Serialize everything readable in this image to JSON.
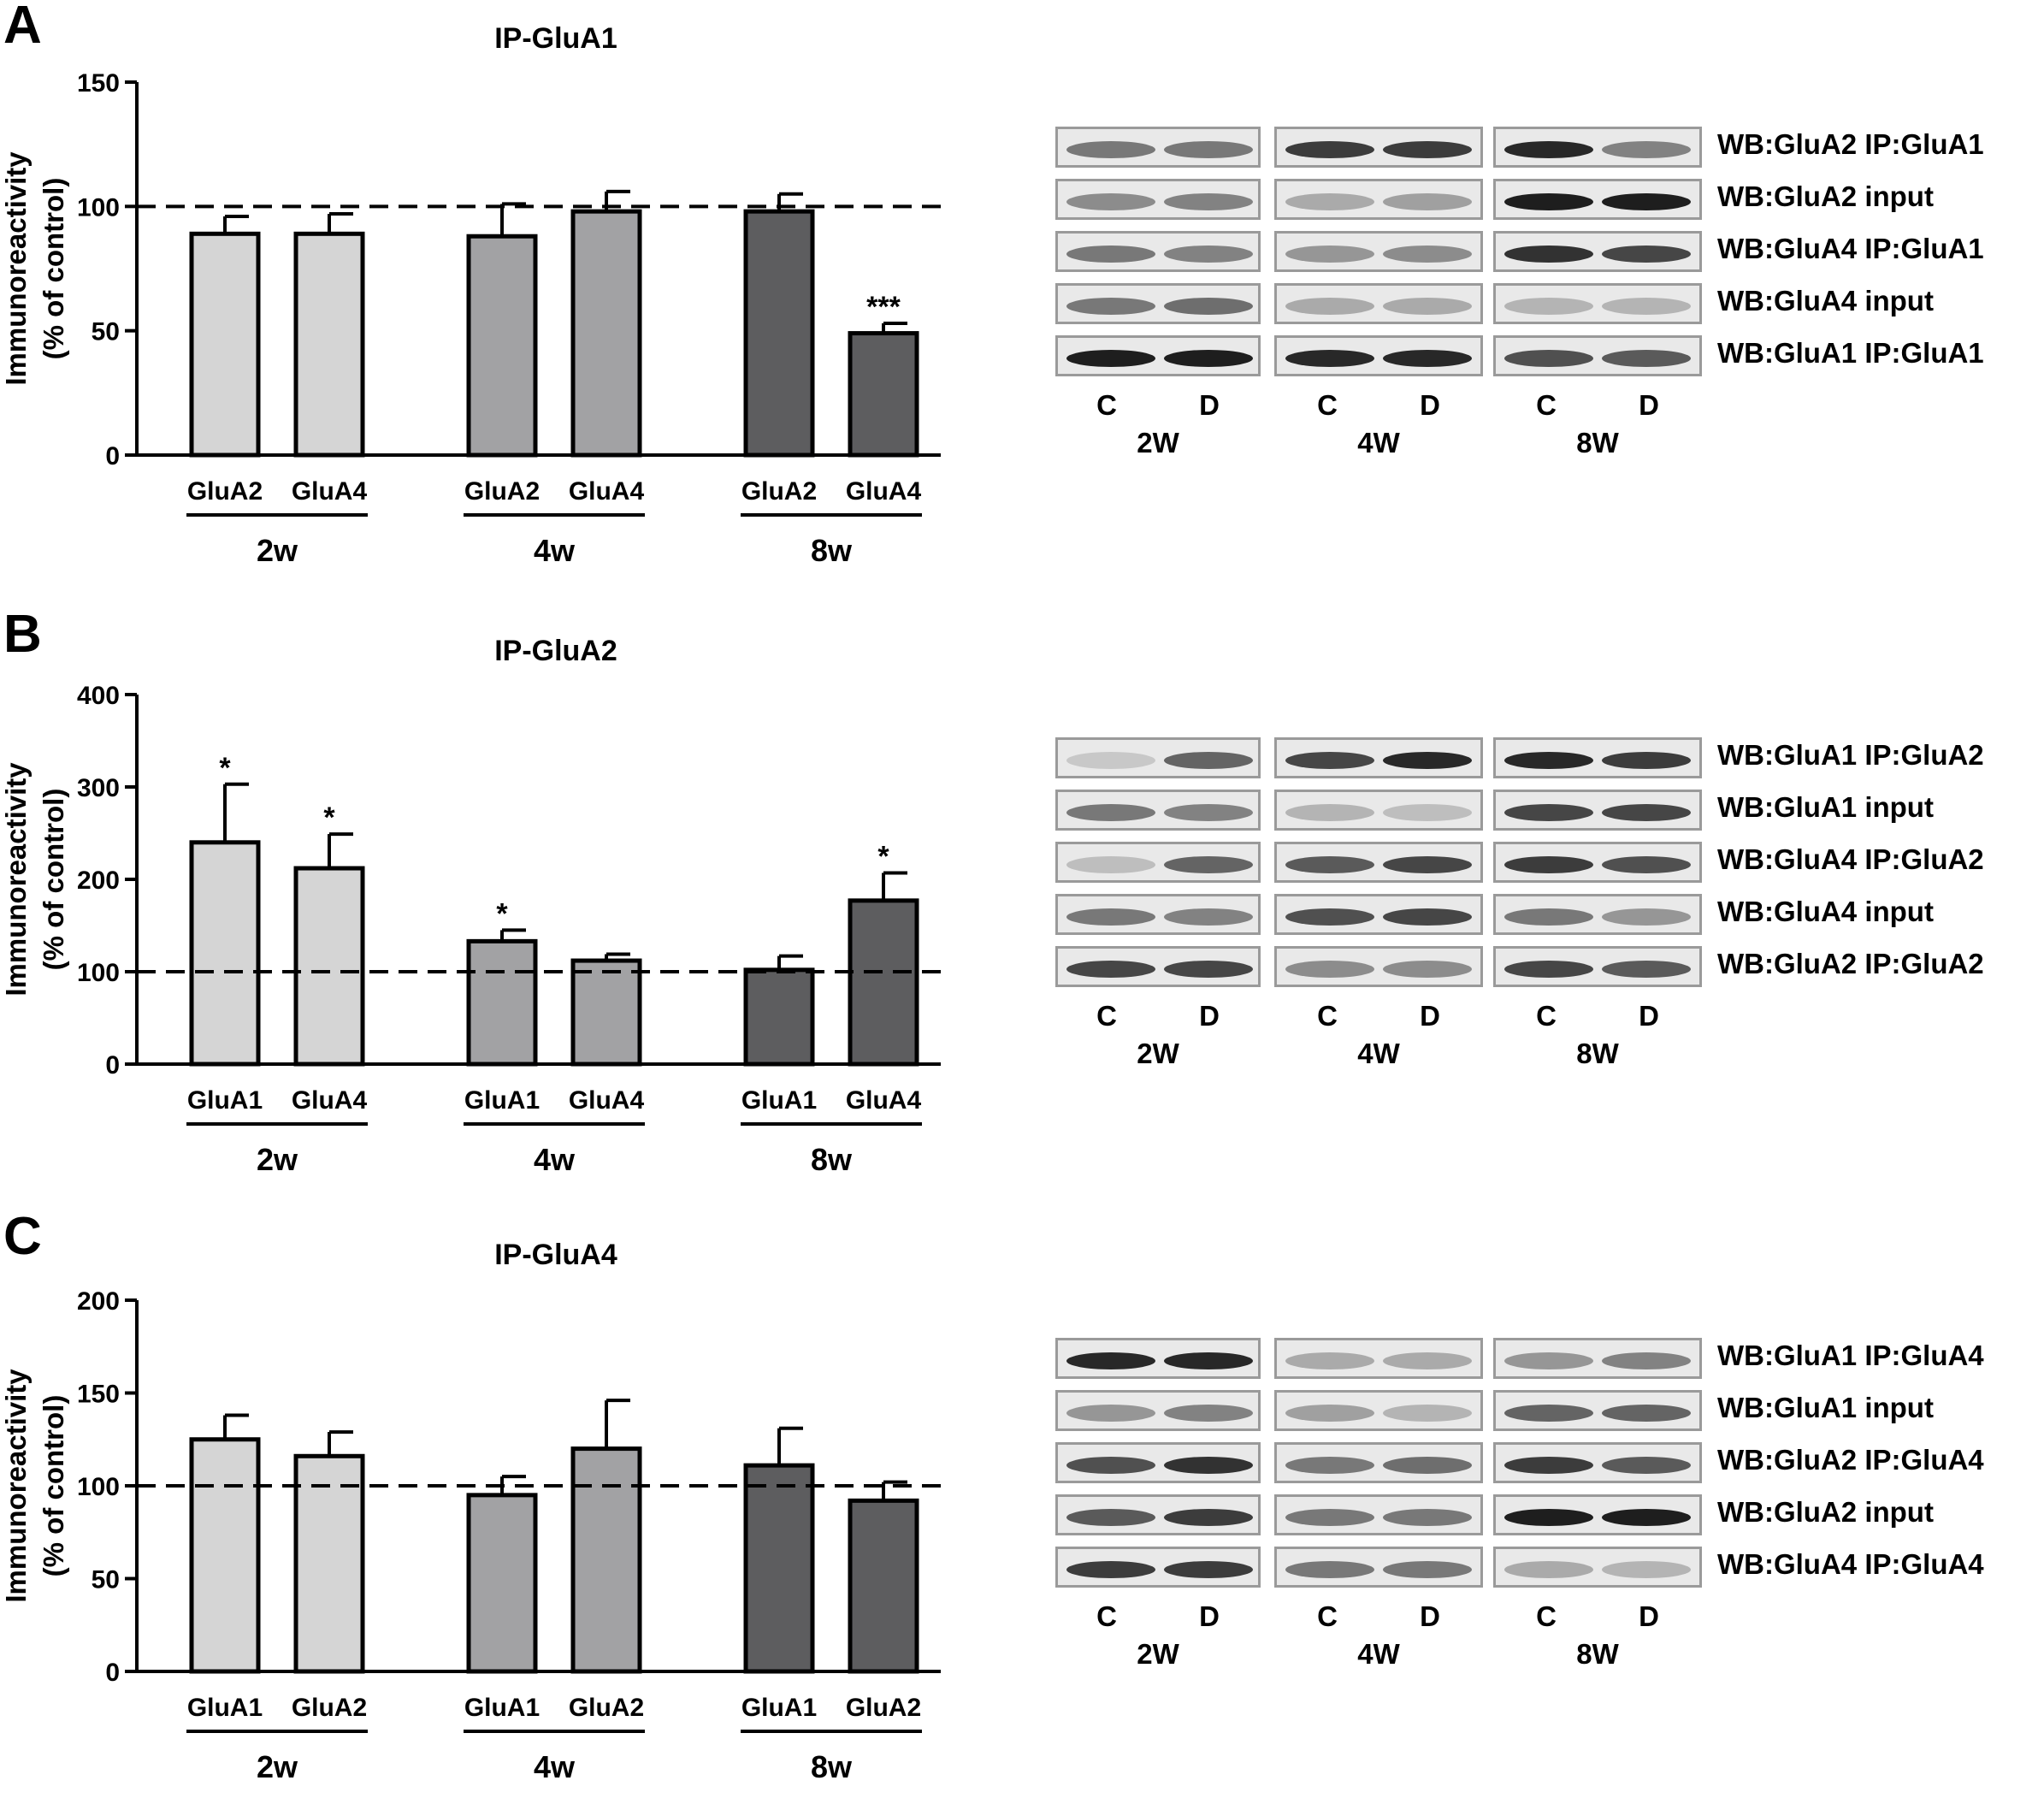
{
  "chart_data": [
    {
      "panel": "A",
      "type": "bar",
      "title": "IP-GluA1",
      "ylabel": "Immunoreactivity\n(% of control)",
      "ylim": [
        0,
        150
      ],
      "yticks": [
        0,
        50,
        100,
        150
      ],
      "reference_line": 100,
      "categories": [
        "GluA2",
        "GluA4",
        "GluA2",
        "GluA4",
        "GluA2",
        "GluA4"
      ],
      "groups": [
        "2w",
        "4w",
        "8w"
      ],
      "values": [
        89,
        89,
        88,
        98,
        98,
        49
      ],
      "errors": [
        7,
        8,
        13,
        8,
        7,
        4
      ],
      "significance": [
        "",
        "",
        "",
        "",
        "",
        "***"
      ],
      "colors": [
        "#d5d5d5",
        "#d5d5d5",
        "#a2a2a4",
        "#a2a2a4",
        "#5d5d5f",
        "#5d5d5f"
      ]
    },
    {
      "panel": "B",
      "type": "bar",
      "title": "IP-GluA2",
      "ylabel": "Immunoreactivity\n(% of control)",
      "ylim": [
        0,
        400
      ],
      "yticks": [
        0,
        100,
        200,
        300,
        400
      ],
      "reference_line": 100,
      "categories": [
        "GluA1",
        "GluA4",
        "GluA1",
        "GluA4",
        "GluA1",
        "GluA4"
      ],
      "groups": [
        "2w",
        "4w",
        "8w"
      ],
      "values": [
        240,
        212,
        133,
        112,
        102,
        177
      ],
      "errors": [
        63,
        37,
        12,
        7,
        15,
        30
      ],
      "significance": [
        "*",
        "*",
        "*",
        "",
        "",
        "*"
      ],
      "colors": [
        "#d5d5d5",
        "#d5d5d5",
        "#a2a2a4",
        "#a2a2a4",
        "#5d5d5f",
        "#5d5d5f"
      ]
    },
    {
      "panel": "C",
      "type": "bar",
      "title": "IP-GluA4",
      "ylabel": "Immunoreactivity\n(% of control)",
      "ylim": [
        0,
        200
      ],
      "yticks": [
        0,
        50,
        100,
        150,
        200
      ],
      "reference_line": 100,
      "categories": [
        "GluA1",
        "GluA2",
        "GluA1",
        "GluA2",
        "GluA1",
        "GluA2"
      ],
      "groups": [
        "2w",
        "4w",
        "8w"
      ],
      "values": [
        125,
        116,
        95,
        120,
        111,
        92
      ],
      "errors": [
        13,
        13,
        10,
        26,
        20,
        10
      ],
      "significance": [
        "",
        "",
        "",
        "",
        "",
        ""
      ],
      "colors": [
        "#d5d5d5",
        "#d5d5d5",
        "#a2a2a4",
        "#a2a2a4",
        "#5d5d5f",
        "#5d5d5f"
      ]
    }
  ],
  "blots": [
    {
      "panel": "A",
      "rows": [
        {
          "label": "WB:GluA2  IP:GluA1",
          "bands": [
            [
              0.55,
              0.55
            ],
            [
              0.85,
              0.85
            ],
            [
              0.95,
              0.5
            ]
          ]
        },
        {
          "label": "WB:GluA2  input",
          "bands": [
            [
              0.45,
              0.5
            ],
            [
              0.3,
              0.35
            ],
            [
              1.0,
              1.0
            ]
          ]
        },
        {
          "label": "WB:GluA4  IP:GluA1",
          "bands": [
            [
              0.55,
              0.5
            ],
            [
              0.4,
              0.45
            ],
            [
              0.9,
              0.8
            ]
          ]
        },
        {
          "label": "WB:GluA4  input",
          "bands": [
            [
              0.55,
              0.6
            ],
            [
              0.3,
              0.3
            ],
            [
              0.25,
              0.25
            ]
          ]
        },
        {
          "label": "WB:GluA1  IP:GluA1",
          "bands": [
            [
              1.0,
              1.0
            ],
            [
              0.95,
              0.95
            ],
            [
              0.75,
              0.7
            ]
          ]
        }
      ],
      "lanes": [
        "C",
        "D"
      ],
      "weeks": [
        "2W",
        "4W",
        "8W"
      ]
    },
    {
      "panel": "B",
      "rows": [
        {
          "label": "WB:GluA1  IP:GluA2",
          "bands": [
            [
              0.15,
              0.65
            ],
            [
              0.8,
              0.95
            ],
            [
              0.95,
              0.85
            ]
          ]
        },
        {
          "label": "WB:GluA1  input",
          "bands": [
            [
              0.55,
              0.5
            ],
            [
              0.25,
              0.2
            ],
            [
              0.8,
              0.8
            ]
          ]
        },
        {
          "label": "WB:GluA4  IP:GluA2",
          "bands": [
            [
              0.2,
              0.65
            ],
            [
              0.7,
              0.8
            ],
            [
              0.85,
              0.75
            ]
          ]
        },
        {
          "label": "WB:GluA4  input",
          "bands": [
            [
              0.55,
              0.5
            ],
            [
              0.75,
              0.8
            ],
            [
              0.55,
              0.4
            ]
          ]
        },
        {
          "label": "WB:GluA2  IP:GluA2",
          "bands": [
            [
              0.8,
              0.8
            ],
            [
              0.45,
              0.45
            ],
            [
              0.8,
              0.7
            ]
          ]
        }
      ],
      "lanes": [
        "C",
        "D"
      ],
      "weeks": [
        "2W",
        "4W",
        "8W"
      ]
    },
    {
      "panel": "C",
      "rows": [
        {
          "label": "WB:GluA1  IP:GluA4",
          "bands": [
            [
              0.95,
              0.95
            ],
            [
              0.3,
              0.3
            ],
            [
              0.4,
              0.5
            ]
          ]
        },
        {
          "label": "WB:GluA1  input",
          "bands": [
            [
              0.4,
              0.5
            ],
            [
              0.35,
              0.25
            ],
            [
              0.65,
              0.65
            ]
          ]
        },
        {
          "label": "WB:GluA2  IP:GluA4",
          "bands": [
            [
              0.75,
              0.9
            ],
            [
              0.55,
              0.6
            ],
            [
              0.85,
              0.7
            ]
          ]
        },
        {
          "label": "WB:GluA2  input",
          "bands": [
            [
              0.7,
              0.85
            ],
            [
              0.55,
              0.55
            ],
            [
              1.0,
              1.0
            ]
          ]
        },
        {
          "label": "WB:GluA4  IP:GluA4",
          "bands": [
            [
              0.85,
              0.85
            ],
            [
              0.55,
              0.55
            ],
            [
              0.3,
              0.25
            ]
          ]
        }
      ],
      "lanes": [
        "C",
        "D"
      ],
      "weeks": [
        "2W",
        "4W",
        "8W"
      ]
    }
  ]
}
